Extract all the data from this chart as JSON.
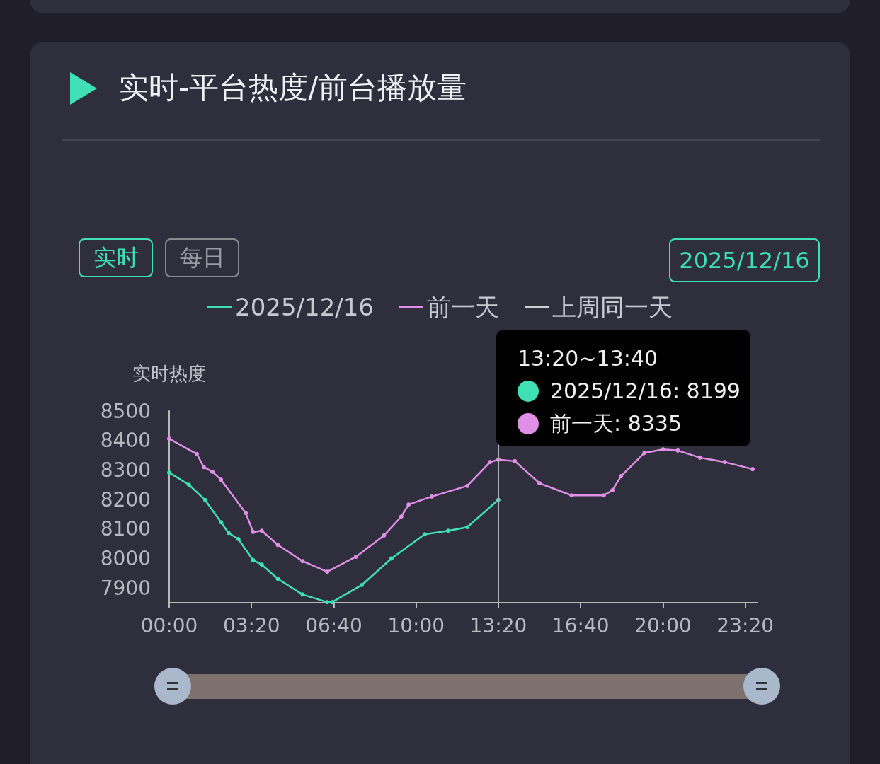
{
  "chart_data": {
    "type": "line",
    "title": "实时-平台热度/前台播放量",
    "ylabel": "实时热度",
    "annotations": [
      "实时",
      "每日",
      "2025/12/16",
      "13:20~13:40",
      "2025/12/16: 8199",
      "前一天: 8335"
    ],
    "series": [
      {
        "name": "2025/12/16",
        "color": "#3ee0b4",
        "x": [
          0,
          0.8,
          1.46,
          2.1,
          2.4,
          2.8,
          3.4,
          3.75,
          4.4,
          5.4,
          6.4,
          6.6,
          7.8,
          9,
          10.35,
          11.3,
          12.07,
          13.3333
        ],
        "values": [
          8291,
          8250,
          8198,
          8123,
          8087,
          8066,
          7994,
          7979,
          7931,
          7878,
          7852,
          7852,
          7910,
          8000,
          8082,
          8094,
          8106,
          8199
        ]
      },
      {
        "name": "前一天",
        "color": "#e08fe6",
        "x": [
          0,
          1.12,
          1.4,
          1.75,
          2.1,
          3.1,
          3.4,
          3.75,
          4.4,
          5.4,
          6.4,
          7.57,
          8.7,
          9.4,
          9.7,
          10.64,
          12.07,
          13,
          13.3333,
          14,
          15,
          16.3,
          17.6,
          17.95,
          18.3,
          19.25,
          20,
          20.6,
          21.5,
          22.5,
          23.63
        ],
        "values": [
          8406,
          8354,
          8310,
          8294,
          8267,
          8154,
          8090,
          8094,
          8046,
          7991,
          7955,
          8006,
          8078,
          8142,
          8183,
          8210,
          8246,
          8327,
          8335,
          8330,
          8255,
          8214,
          8214,
          8231,
          8279,
          8358,
          8370,
          8366,
          8342,
          8327,
          8303
        ]
      },
      {
        "name": "上周同一天",
        "color": "#cfcfcf"
      }
    ],
    "xlim": [
      0,
      23.83
    ],
    "xticks": [
      {
        "value": 0,
        "label": "00:00"
      },
      {
        "value": 3.3333,
        "label": "03:20"
      },
      {
        "value": 6.6667,
        "label": "06:40"
      },
      {
        "value": 10,
        "label": "10:00"
      },
      {
        "value": 13.3333,
        "label": "13:20"
      },
      {
        "value": 16.6667,
        "label": "16:40"
      },
      {
        "value": 20,
        "label": "20:00"
      },
      {
        "value": 23.3333,
        "label": "23:20"
      }
    ],
    "ylim": [
      7850,
      8500
    ],
    "yticks": [
      7900,
      8000,
      8100,
      8200,
      8300,
      8400,
      8500
    ],
    "ref_lines": [
      {
        "axis": "x",
        "value": 13.3333,
        "color": "#b0b0b0"
      }
    ],
    "grid": false,
    "legend": "top",
    "marker": "circle",
    "line_style": "solid"
  }
}
